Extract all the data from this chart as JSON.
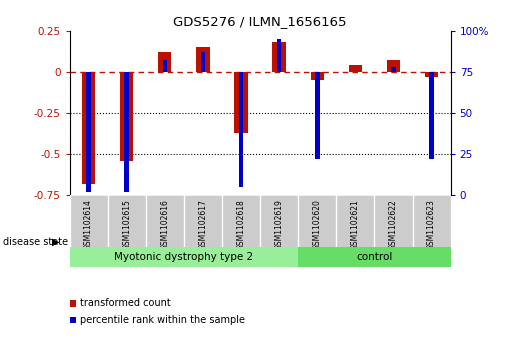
{
  "title": "GDS5276 / ILMN_1656165",
  "samples": [
    "GSM1102614",
    "GSM1102615",
    "GSM1102616",
    "GSM1102617",
    "GSM1102618",
    "GSM1102619",
    "GSM1102620",
    "GSM1102621",
    "GSM1102622",
    "GSM1102623"
  ],
  "red_values": [
    -0.68,
    -0.54,
    0.12,
    0.15,
    -0.37,
    0.18,
    -0.05,
    0.04,
    0.07,
    -0.03
  ],
  "blue_values": [
    2,
    2,
    82,
    87,
    5,
    95,
    22,
    75,
    78,
    22
  ],
  "ylim_left": [
    -0.75,
    0.25
  ],
  "ylim_right": [
    0,
    100
  ],
  "yticks_left": [
    0.25,
    0.0,
    -0.25,
    -0.5,
    -0.75
  ],
  "yticks_right": [
    100,
    75,
    50,
    25,
    0
  ],
  "red_color": "#bb1100",
  "blue_color": "#0000cc",
  "dotted_lines": [
    -0.25,
    -0.5
  ],
  "groups": [
    {
      "label": "Myotonic dystrophy type 2",
      "start": 0,
      "end": 5,
      "color": "#99ee99"
    },
    {
      "label": "control",
      "start": 6,
      "end": 9,
      "color": "#66dd66"
    }
  ],
  "disease_state_label": "disease state",
  "legend_items": [
    {
      "label": "transformed count",
      "color": "#bb1100"
    },
    {
      "label": "percentile rank within the sample",
      "color": "#0000cc"
    }
  ],
  "red_bar_width": 0.35,
  "blue_bar_width": 0.12,
  "label_bg": "#cccccc",
  "background_color": "#ffffff"
}
